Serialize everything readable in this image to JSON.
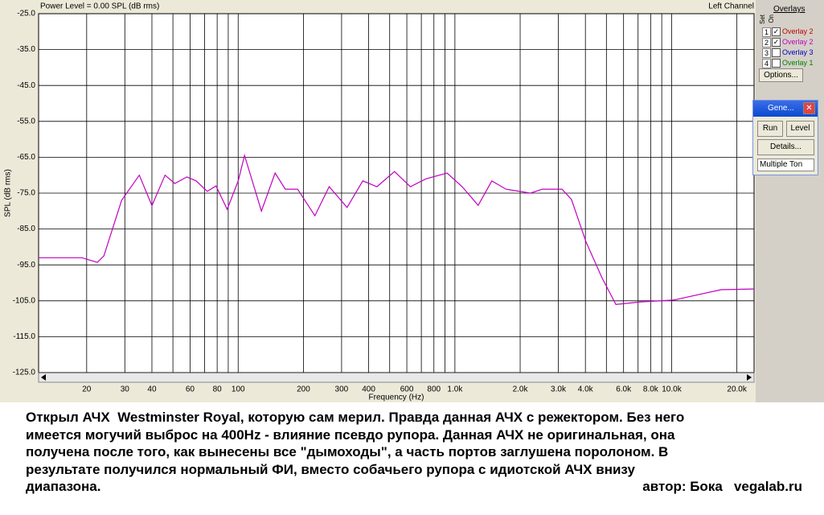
{
  "chart_data": {
    "type": "line",
    "title": "Power Level = 0.00 SPL (dB rms)",
    "channel": "Left Channel",
    "x_label": "Frequency (Hz)",
    "y_label": "SPL (dB rms)",
    "log_x": true,
    "grid": true,
    "xlim": [
      12,
      24000
    ],
    "ylim": [
      -125,
      -25
    ],
    "yticks": [
      {
        "value": -125,
        "label": "-125.0"
      },
      {
        "value": -115,
        "label": "-115.0"
      },
      {
        "value": -105,
        "label": "-105.0"
      },
      {
        "value": -95,
        "label": "-95.0"
      },
      {
        "value": -85,
        "label": "-85.0"
      },
      {
        "value": -75,
        "label": "-75.0"
      },
      {
        "value": -65,
        "label": "-65.0"
      },
      {
        "value": -55,
        "label": "-55.0"
      },
      {
        "value": -45,
        "label": "-45.0"
      },
      {
        "value": -35,
        "label": "-35.0"
      },
      {
        "value": -25,
        "label": "-25.0"
      }
    ],
    "xticks": [
      20,
      30,
      40,
      60,
      80,
      100,
      200,
      300,
      400,
      600,
      800,
      {
        "value": 1000,
        "label": "1.0k"
      },
      {
        "value": 2000,
        "label": "2.0k"
      },
      {
        "value": 3000,
        "label": "3.0k"
      },
      {
        "value": 4000,
        "label": "4.0k"
      },
      {
        "value": 6000,
        "label": "6.0k"
      },
      {
        "value": 8000,
        "label": "8.0k"
      },
      {
        "value": 10000,
        "label": "10.0k"
      },
      {
        "value": 20000,
        "label": "20.0k"
      }
    ],
    "minor_xticks": [
      50,
      70,
      90,
      500,
      700,
      900,
      5000,
      7000,
      9000
    ],
    "series": [
      {
        "name": "Overlay 2",
        "color": "#c000c0",
        "x": [
          12,
          19,
          22.4,
          24,
          29,
          35,
          40,
          46,
          51,
          58,
          64,
          72,
          79,
          89,
          100,
          107,
          128,
          148,
          165,
          188,
          226,
          263,
          318,
          376,
          437,
          526,
          623,
          736,
          920,
          1080,
          1280,
          1480,
          1720,
          2230,
          2530,
          3120,
          3450,
          4020,
          4760,
          5530,
          7250,
          10200,
          16900,
          24000
        ],
        "values": [
          -93,
          -93,
          -94.3,
          -92.5,
          -77,
          -70,
          -78.5,
          -70,
          -72.3,
          -70.5,
          -71.6,
          -74.5,
          -73,
          -79.5,
          -71.6,
          -64.5,
          -80,
          -69.4,
          -73.9,
          -73.9,
          -81.3,
          -73.2,
          -79,
          -71.6,
          -73.2,
          -69,
          -73.2,
          -71,
          -69.4,
          -73.2,
          -78.4,
          -71.6,
          -73.9,
          -75,
          -73.9,
          -73.9,
          -76.8,
          -88.5,
          -98.5,
          -106,
          -105.3,
          -104.8,
          -101.9,
          -101.7
        ]
      }
    ]
  },
  "overlays": {
    "title": "Overlays",
    "set_label": "Set",
    "on_label": "On",
    "options": "Options...",
    "rows": [
      {
        "set": "1",
        "checked": true,
        "name": "Overlay 2",
        "color": "#c00000"
      },
      {
        "set": "2",
        "checked": true,
        "name": "Overlay 2",
        "color": "#c000c0"
      },
      {
        "set": "3",
        "checked": false,
        "name": "Overlay 3",
        "color": "#0000c0"
      },
      {
        "set": "4",
        "checked": false,
        "name": "Overlay 1",
        "color": "#008000"
      }
    ]
  },
  "generator": {
    "title": "Gene...",
    "run": "Run",
    "level": "Level",
    "details": "Details...",
    "mode": "Multiple Ton"
  },
  "caption": {
    "lines": [
      "Открыл АЧХ  Westminster Royal, которую сам мерил. Правда данная АЧХ с режектором. Без него",
      "имеется могучий выброс на 400Hz - влияние псевдо рупора. Данная АЧХ не оригинальная, она",
      "получена после того, как вынесены все \"дымоходы\", а часть портов заглушена поролоном. В",
      "результате получился нормальный ФИ, вместо собачьего рупора с идиотской АЧХ внизу",
      "диапазона."
    ],
    "author": "автор: Бока   vegalab.ru"
  }
}
